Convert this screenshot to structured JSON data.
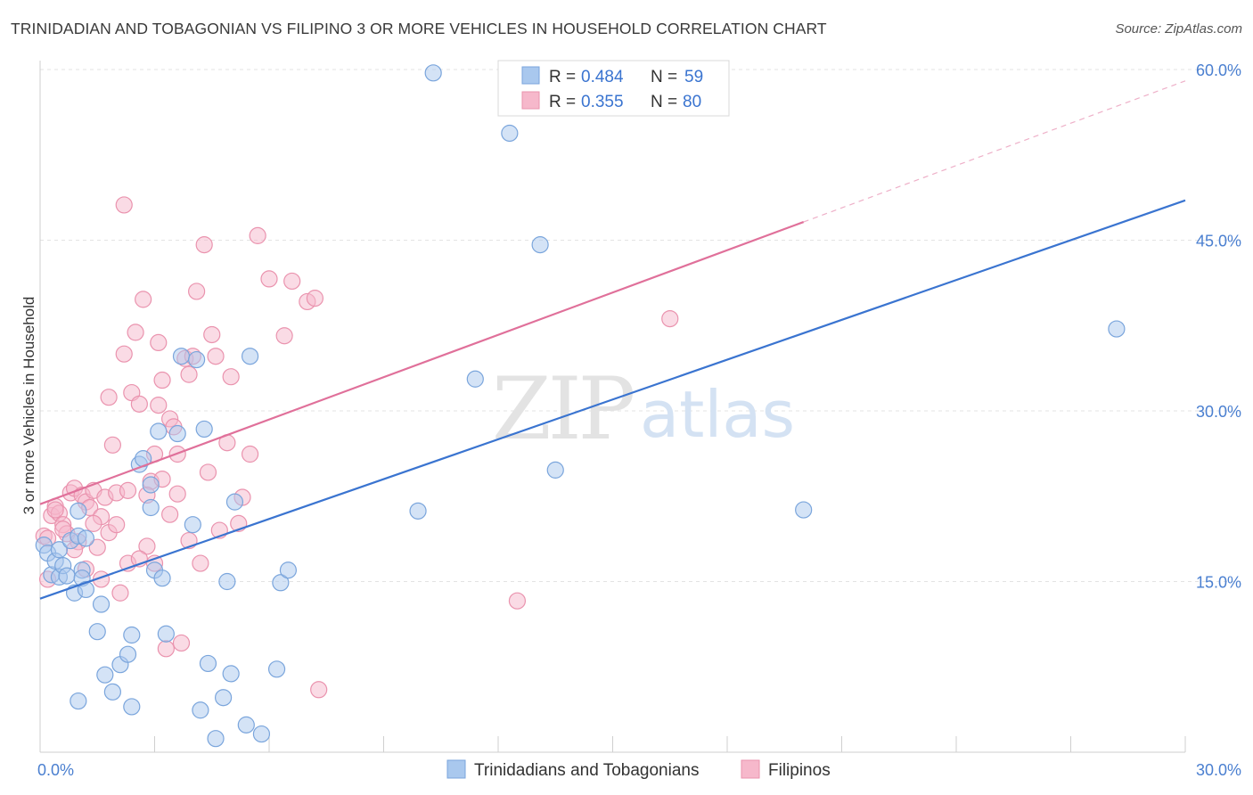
{
  "title": "TRINIDADIAN AND TOBAGONIAN VS FILIPINO 3 OR MORE VEHICLES IN HOUSEHOLD CORRELATION CHART",
  "source": "Source: ZipAtlas.com",
  "watermark": {
    "zip": "ZIP",
    "atlas": "atlas"
  },
  "colors": {
    "blue_fill": "#a9c8ee",
    "blue_stroke": "#7aa5dc",
    "blue_line": "#3a74d0",
    "pink_fill": "#f6b8cb",
    "pink_stroke": "#ea93ae",
    "pink_line": "#e0709a",
    "grid": "#e3e3e3",
    "tick_label": "#4a7fd0"
  },
  "legend": {
    "rows": [
      {
        "r_label": "R = ",
        "r_value": "0.484",
        "n_label": "N = ",
        "n_value": "59"
      },
      {
        "r_label": "R = ",
        "r_value": "0.355",
        "n_label": "N = ",
        "n_value": "80"
      }
    ]
  },
  "chart_data": {
    "type": "scatter",
    "xlabel": "",
    "ylabel": "3 or more Vehicles in Household",
    "xlim": [
      0,
      30
    ],
    "ylim": [
      0,
      60
    ],
    "x_tick_labels": [
      "0.0%",
      "30.0%"
    ],
    "y_ticks": [
      15,
      30,
      45,
      60
    ],
    "y_tick_labels": [
      "15.0%",
      "30.0%",
      "45.0%",
      "60.0%"
    ],
    "grid": true,
    "legend_position": "top-center",
    "series": [
      {
        "name": "Trinidadians and Tobagonians",
        "color": "#a9c8ee",
        "trend": {
          "x0": 0,
          "y0": 13.5,
          "x1": 30,
          "y1": 48.5,
          "dashed_to": null
        },
        "points": [
          [
            0.1,
            18.2
          ],
          [
            0.2,
            17.5
          ],
          [
            0.3,
            15.6
          ],
          [
            0.4,
            16.8
          ],
          [
            0.5,
            15.4
          ],
          [
            0.5,
            17.8
          ],
          [
            0.6,
            16.4
          ],
          [
            0.7,
            15.5
          ],
          [
            0.8,
            18.6
          ],
          [
            0.9,
            14.0
          ],
          [
            1.0,
            21.2
          ],
          [
            1.0,
            19.0
          ],
          [
            1.1,
            16.0
          ],
          [
            1.1,
            15.3
          ],
          [
            1.2,
            18.8
          ],
          [
            1.2,
            14.3
          ],
          [
            1.5,
            10.6
          ],
          [
            1.6,
            13.0
          ],
          [
            1.7,
            6.8
          ],
          [
            1.9,
            5.3
          ],
          [
            2.1,
            7.7
          ],
          [
            2.3,
            8.6
          ],
          [
            2.4,
            10.3
          ],
          [
            2.4,
            4.0
          ],
          [
            2.6,
            25.3
          ],
          [
            2.7,
            25.8
          ],
          [
            2.9,
            23.5
          ],
          [
            2.9,
            21.5
          ],
          [
            3.0,
            16.0
          ],
          [
            3.1,
            28.2
          ],
          [
            3.2,
            15.3
          ],
          [
            3.3,
            10.4
          ],
          [
            3.6,
            28.0
          ],
          [
            3.7,
            34.8
          ],
          [
            4.0,
            20.0
          ],
          [
            4.1,
            34.5
          ],
          [
            4.2,
            3.7
          ],
          [
            4.3,
            28.4
          ],
          [
            4.4,
            7.8
          ],
          [
            4.6,
            1.2
          ],
          [
            4.8,
            4.8
          ],
          [
            4.9,
            15.0
          ],
          [
            5.0,
            6.9
          ],
          [
            5.1,
            22.0
          ],
          [
            5.4,
            2.4
          ],
          [
            5.5,
            34.8
          ],
          [
            5.8,
            1.6
          ],
          [
            6.2,
            7.3
          ],
          [
            6.3,
            14.9
          ],
          [
            6.5,
            16.0
          ],
          [
            1.0,
            4.5
          ],
          [
            9.9,
            21.2
          ],
          [
            10.3,
            59.7
          ],
          [
            11.4,
            32.8
          ],
          [
            12.3,
            54.4
          ],
          [
            13.1,
            44.6
          ],
          [
            13.5,
            24.8
          ],
          [
            20.0,
            21.3
          ],
          [
            28.2,
            37.2
          ]
        ]
      },
      {
        "name": "Filipinos",
        "color": "#f6b8cb",
        "trend": {
          "x0": 0,
          "y0": 21.8,
          "x1": 20,
          "y1": 46.6,
          "dashed_to": [
            30,
            59.0
          ]
        },
        "points": [
          [
            0.1,
            19.0
          ],
          [
            0.2,
            15.2
          ],
          [
            0.3,
            20.8
          ],
          [
            0.4,
            21.6
          ],
          [
            0.5,
            21.0
          ],
          [
            0.6,
            20.0
          ],
          [
            0.7,
            19.2
          ],
          [
            0.8,
            22.8
          ],
          [
            0.9,
            23.2
          ],
          [
            1.0,
            18.5
          ],
          [
            1.1,
            22.6
          ],
          [
            1.2,
            22.0
          ],
          [
            1.3,
            21.5
          ],
          [
            1.4,
            23.0
          ],
          [
            1.5,
            18.0
          ],
          [
            1.6,
            20.7
          ],
          [
            1.7,
            22.4
          ],
          [
            1.8,
            31.2
          ],
          [
            1.9,
            27.0
          ],
          [
            2.0,
            22.8
          ],
          [
            2.1,
            14.0
          ],
          [
            2.2,
            35.0
          ],
          [
            2.3,
            16.6
          ],
          [
            2.4,
            31.6
          ],
          [
            2.5,
            36.9
          ],
          [
            2.6,
            30.6
          ],
          [
            2.7,
            39.8
          ],
          [
            2.8,
            18.1
          ],
          [
            2.9,
            23.8
          ],
          [
            3.0,
            16.6
          ],
          [
            3.1,
            30.5
          ],
          [
            3.2,
            32.7
          ],
          [
            3.3,
            9.1
          ],
          [
            3.4,
            29.3
          ],
          [
            3.5,
            28.6
          ],
          [
            3.6,
            26.2
          ],
          [
            3.7,
            9.6
          ],
          [
            3.8,
            34.6
          ],
          [
            3.9,
            33.2
          ],
          [
            4.0,
            34.8
          ],
          [
            4.1,
            40.5
          ],
          [
            4.2,
            16.6
          ],
          [
            4.3,
            44.6
          ],
          [
            4.5,
            36.7
          ],
          [
            4.6,
            34.8
          ],
          [
            4.7,
            19.5
          ],
          [
            5.0,
            33.0
          ],
          [
            5.3,
            22.4
          ],
          [
            5.5,
            26.2
          ],
          [
            5.7,
            45.4
          ],
          [
            6.0,
            41.6
          ],
          [
            6.4,
            36.6
          ],
          [
            6.6,
            41.4
          ],
          [
            7.0,
            39.6
          ],
          [
            7.2,
            39.9
          ],
          [
            7.3,
            5.5
          ],
          [
            2.2,
            48.1
          ],
          [
            12.5,
            13.3
          ],
          [
            16.5,
            38.1
          ],
          [
            0.2,
            18.8
          ],
          [
            0.4,
            21.3
          ],
          [
            0.6,
            19.6
          ],
          [
            0.9,
            17.8
          ],
          [
            1.2,
            16.1
          ],
          [
            1.4,
            20.1
          ],
          [
            1.6,
            15.2
          ],
          [
            1.8,
            19.3
          ],
          [
            2.0,
            20.0
          ],
          [
            2.3,
            23.0
          ],
          [
            2.6,
            17.0
          ],
          [
            2.8,
            22.6
          ],
          [
            3.0,
            26.2
          ],
          [
            3.2,
            24.0
          ],
          [
            3.4,
            20.9
          ],
          [
            3.6,
            22.7
          ],
          [
            3.9,
            18.6
          ],
          [
            4.4,
            24.6
          ],
          [
            4.9,
            27.2
          ],
          [
            5.2,
            20.1
          ],
          [
            3.1,
            36.0
          ]
        ]
      }
    ]
  }
}
